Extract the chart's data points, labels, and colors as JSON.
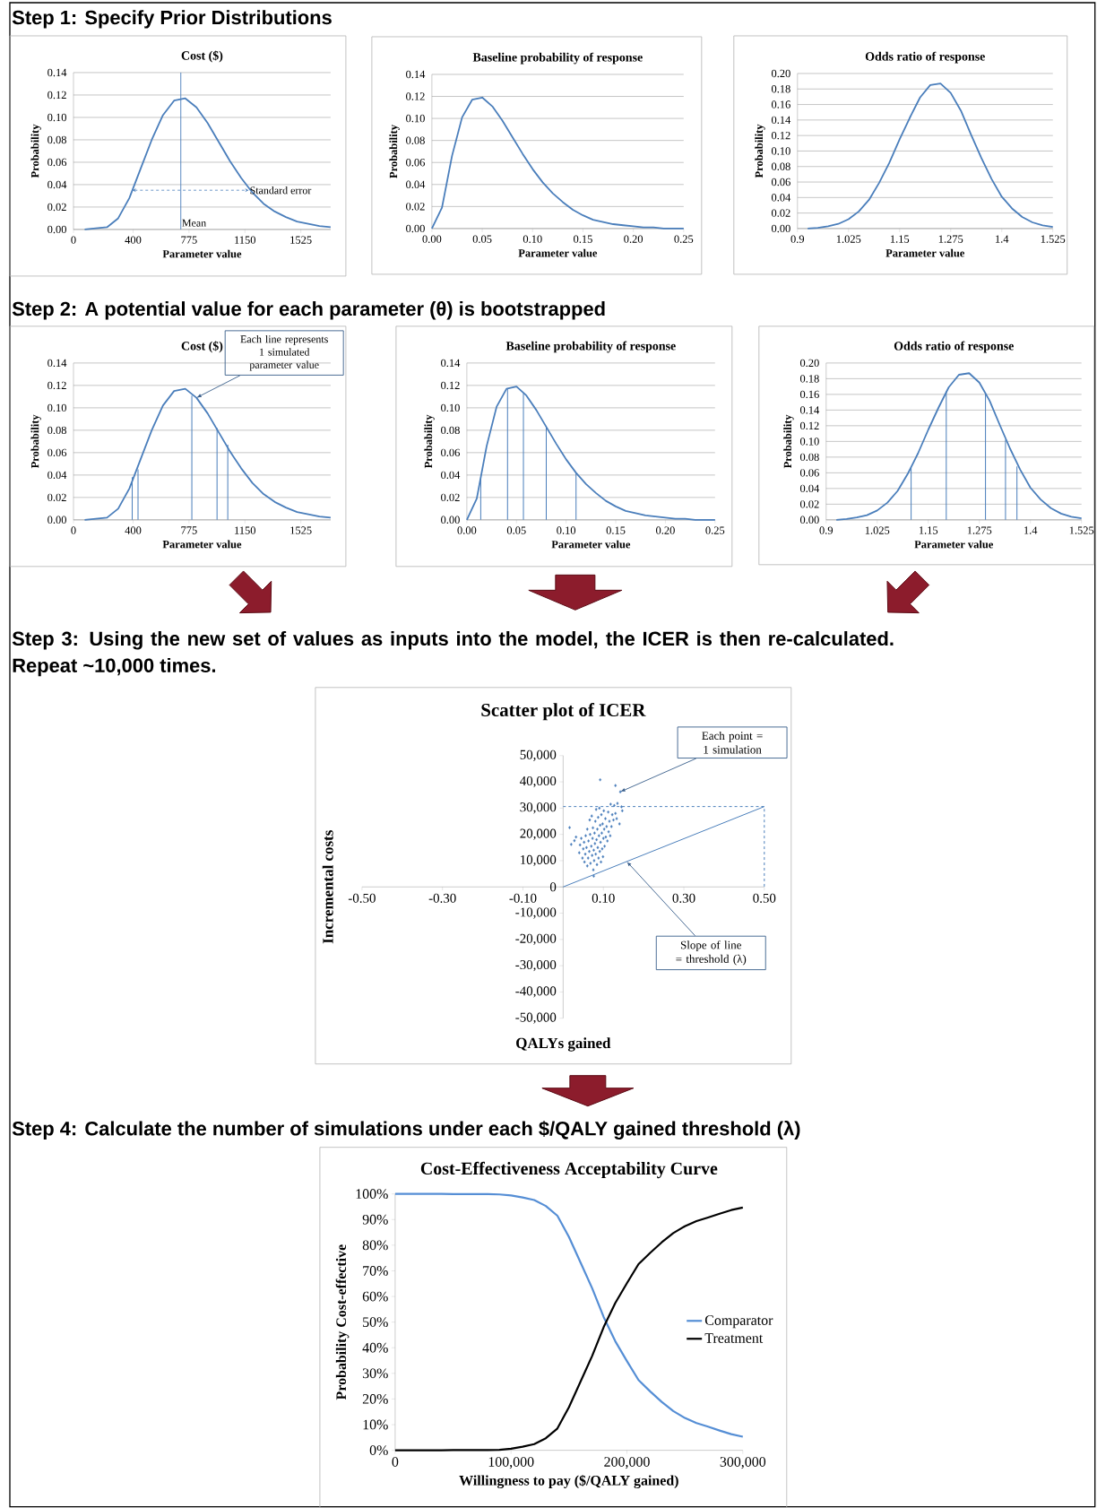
{
  "chart_data": [
    {
      "type": "other",
      "title": "Step 1: Specify Prior Distributions"
    },
    {
      "type": "line",
      "title": "Cost ($)",
      "xlabel": "Parameter value",
      "ylabel": "Probability",
      "color": "#4a7ebb",
      "x": [
        75,
        150,
        225,
        300,
        375,
        450,
        525,
        600,
        675,
        750,
        825,
        900,
        975,
        1050,
        1125,
        1200,
        1275,
        1350,
        1425,
        1500,
        1575,
        1650,
        1725
      ],
      "values": [
        0.0,
        0.001,
        0.002,
        0.01,
        0.028,
        0.054,
        0.08,
        0.102,
        0.115,
        0.117,
        0.109,
        0.095,
        0.078,
        0.061,
        0.046,
        0.033,
        0.023,
        0.016,
        0.011,
        0.007,
        0.005,
        0.003,
        0.002
      ],
      "xlim": [
        0,
        1725
      ],
      "xticks": [
        0,
        400,
        775,
        1150,
        1525
      ],
      "ylim": [
        0,
        0.14
      ],
      "yticks": [
        {
          "value": 0,
          "label": "0.00"
        },
        {
          "value": 0.02,
          "label": "0.02"
        },
        {
          "value": 0.04,
          "label": "0.04"
        },
        {
          "value": 0.06,
          "label": "0.06"
        },
        {
          "value": 0.08,
          "label": "0.08"
        },
        {
          "value": 0.1,
          "label": "0.10"
        },
        {
          "value": 0.12,
          "label": "0.12"
        },
        {
          "value": 0.14,
          "label": "0.14"
        }
      ],
      "grid": "y",
      "ref_lines": [
        {
          "axis": "x",
          "value": 720,
          "label": "Mean",
          "color": "#4a7ebb"
        }
      ],
      "annotations": [
        {
          "text": "Standard error",
          "x": 1175,
          "y": 0.035
        }
      ]
    },
    {
      "type": "line",
      "title": "Baseline probability of response",
      "xlabel": "Parameter value",
      "ylabel": "Probability",
      "color": "#4a7ebb",
      "x": [
        0,
        0.01,
        0.02,
        0.03,
        0.04,
        0.05,
        0.06,
        0.07,
        0.08,
        0.09,
        0.1,
        0.11,
        0.12,
        0.13,
        0.14,
        0.15,
        0.16,
        0.17,
        0.18,
        0.19,
        0.2,
        0.21,
        0.22,
        0.23,
        0.24,
        0.25
      ],
      "values": [
        0.0,
        0.019,
        0.066,
        0.101,
        0.117,
        0.119,
        0.111,
        0.098,
        0.083,
        0.068,
        0.054,
        0.042,
        0.032,
        0.024,
        0.017,
        0.012,
        0.008,
        0.006,
        0.004,
        0.003,
        0.002,
        0.001,
        0.001,
        0.0,
        0.0,
        0.0
      ],
      "xlim": [
        0,
        0.25
      ],
      "xticks": [
        {
          "value": 0,
          "label": "0.00"
        },
        {
          "value": 0.05,
          "label": "0.05"
        },
        {
          "value": 0.1,
          "label": "0.10"
        },
        {
          "value": 0.15,
          "label": "0.15"
        },
        {
          "value": 0.2,
          "label": "0.20"
        },
        {
          "value": 0.25,
          "label": "0.25"
        }
      ],
      "ylim": [
        0,
        0.14
      ],
      "yticks": [
        {
          "value": 0,
          "label": "0.00"
        },
        {
          "value": 0.02,
          "label": "0.02"
        },
        {
          "value": 0.04,
          "label": "0.04"
        },
        {
          "value": 0.06,
          "label": "0.06"
        },
        {
          "value": 0.08,
          "label": "0.08"
        },
        {
          "value": 0.1,
          "label": "0.10"
        },
        {
          "value": 0.12,
          "label": "0.12"
        },
        {
          "value": 0.14,
          "label": "0.14"
        }
      ],
      "grid": "y"
    },
    {
      "type": "line",
      "title": "Odds ratio of response",
      "xlabel": "Parameter value",
      "ylabel": "Probability",
      "color": "#4a7ebb",
      "x": [
        0.925,
        0.95,
        0.975,
        1.0,
        1.025,
        1.05,
        1.075,
        1.1,
        1.125,
        1.15,
        1.175,
        1.2,
        1.225,
        1.25,
        1.275,
        1.3,
        1.325,
        1.35,
        1.375,
        1.4,
        1.425,
        1.45,
        1.475,
        1.5,
        1.525
      ],
      "values": [
        0.0,
        0.001,
        0.003,
        0.006,
        0.012,
        0.022,
        0.037,
        0.059,
        0.085,
        0.115,
        0.143,
        0.169,
        0.185,
        0.187,
        0.175,
        0.152,
        0.121,
        0.091,
        0.064,
        0.041,
        0.026,
        0.015,
        0.008,
        0.004,
        0.002
      ],
      "xlim": [
        0.9,
        1.525
      ],
      "xticks": [
        0.9,
        1.025,
        1.15,
        1.275,
        1.4,
        1.525
      ],
      "ylim": [
        0,
        0.2
      ],
      "yticks": [
        {
          "value": 0,
          "label": "0.00"
        },
        {
          "value": 0.02,
          "label": "0.02"
        },
        {
          "value": 0.04,
          "label": "0.04"
        },
        {
          "value": 0.06,
          "label": "0.06"
        },
        {
          "value": 0.08,
          "label": "0.08"
        },
        {
          "value": 0.1,
          "label": "0.10"
        },
        {
          "value": 0.12,
          "label": "0.12"
        },
        {
          "value": 0.14,
          "label": "0.14"
        },
        {
          "value": 0.16,
          "label": "0.16"
        },
        {
          "value": 0.18,
          "label": "0.18"
        },
        {
          "value": 0.2,
          "label": "0.20"
        }
      ],
      "grid": "y"
    },
    {
      "type": "other",
      "title": "Step 2: A potential value for each parameter (θ) is bootstrapped"
    },
    {
      "type": "line",
      "title": "Cost ($)",
      "xlabel": "Parameter value",
      "ylabel": "Probability",
      "series": [
        {
          "type": "line",
          "color": "#4a7ebb",
          "x": [
            75,
            150,
            225,
            300,
            375,
            450,
            525,
            600,
            675,
            750,
            825,
            900,
            975,
            1050,
            1125,
            1200,
            1275,
            1350,
            1425,
            1500,
            1575,
            1650,
            1725
          ],
          "values": [
            0.0,
            0.001,
            0.002,
            0.01,
            0.028,
            0.054,
            0.08,
            0.102,
            0.115,
            0.117,
            0.109,
            0.095,
            0.078,
            0.061,
            0.046,
            0.033,
            0.023,
            0.016,
            0.011,
            0.007,
            0.005,
            0.003,
            0.002
          ]
        },
        {
          "type": "bar",
          "color": "#4a7ebb",
          "x": [
            394,
            433,
            794,
            963,
            1035
          ],
          "values": [
            0.038,
            0.045,
            0.111,
            0.082,
            0.067
          ]
        }
      ],
      "xlim": [
        0,
        1725
      ],
      "xticks": [
        0,
        400,
        775,
        1150,
        1525
      ],
      "ylim": [
        0,
        0.14
      ],
      "yticks": [
        {
          "value": 0,
          "label": "0.00"
        },
        {
          "value": 0.02,
          "label": "0.02"
        },
        {
          "value": 0.04,
          "label": "0.04"
        },
        {
          "value": 0.06,
          "label": "0.06"
        },
        {
          "value": 0.08,
          "label": "0.08"
        },
        {
          "value": 0.1,
          "label": "0.10"
        },
        {
          "value": 0.12,
          "label": "0.12"
        },
        {
          "value": 0.14,
          "label": "0.14"
        }
      ],
      "grid": "y",
      "annotations": [
        {
          "text": "Each line represents 1 simulated parameter value",
          "x": 825,
          "y": 0.109
        }
      ]
    },
    {
      "type": "line",
      "title": "Baseline probability of response",
      "xlabel": "Parameter value",
      "ylabel": "Probability",
      "series": [
        {
          "type": "line",
          "color": "#4a7ebb",
          "x": [
            0,
            0.01,
            0.02,
            0.03,
            0.04,
            0.05,
            0.06,
            0.07,
            0.08,
            0.09,
            0.1,
            0.11,
            0.12,
            0.13,
            0.14,
            0.15,
            0.16,
            0.17,
            0.18,
            0.19,
            0.2,
            0.21,
            0.22,
            0.23,
            0.24,
            0.25
          ],
          "values": [
            0.0,
            0.019,
            0.066,
            0.101,
            0.117,
            0.119,
            0.111,
            0.098,
            0.083,
            0.068,
            0.054,
            0.042,
            0.032,
            0.024,
            0.017,
            0.012,
            0.008,
            0.006,
            0.004,
            0.003,
            0.002,
            0.001,
            0.001,
            0.0,
            0.0,
            0.0
          ]
        },
        {
          "type": "bar",
          "color": "#4a7ebb",
          "x": [
            0.014,
            0.041,
            0.057,
            0.08,
            0.11
          ],
          "values": [
            0.037,
            0.117,
            0.113,
            0.083,
            0.042
          ]
        }
      ],
      "xlim": [
        0,
        0.25
      ],
      "xticks": [
        {
          "value": 0,
          "label": "0.00"
        },
        {
          "value": 0.05,
          "label": "0.05"
        },
        {
          "value": 0.1,
          "label": "0.10"
        },
        {
          "value": 0.15,
          "label": "0.15"
        },
        {
          "value": 0.2,
          "label": "0.20"
        },
        {
          "value": 0.25,
          "label": "0.25"
        }
      ],
      "ylim": [
        0,
        0.14
      ],
      "yticks": [
        {
          "value": 0,
          "label": "0.00"
        },
        {
          "value": 0.02,
          "label": "0.02"
        },
        {
          "value": 0.04,
          "label": "0.04"
        },
        {
          "value": 0.06,
          "label": "0.06"
        },
        {
          "value": 0.08,
          "label": "0.08"
        },
        {
          "value": 0.1,
          "label": "0.10"
        },
        {
          "value": 0.12,
          "label": "0.12"
        },
        {
          "value": 0.14,
          "label": "0.14"
        }
      ],
      "grid": "y"
    },
    {
      "type": "line",
      "title": "Odds ratio of response",
      "xlabel": "Parameter value",
      "ylabel": "Probability",
      "series": [
        {
          "type": "line",
          "color": "#4a7ebb",
          "x": [
            0.925,
            0.95,
            0.975,
            1.0,
            1.025,
            1.05,
            1.075,
            1.1,
            1.125,
            1.15,
            1.175,
            1.2,
            1.225,
            1.25,
            1.275,
            1.3,
            1.325,
            1.35,
            1.375,
            1.4,
            1.425,
            1.45,
            1.475,
            1.5,
            1.525
          ],
          "values": [
            0.0,
            0.001,
            0.003,
            0.006,
            0.012,
            0.022,
            0.037,
            0.059,
            0.085,
            0.115,
            0.143,
            0.169,
            0.185,
            0.187,
            0.175,
            0.152,
            0.121,
            0.091,
            0.064,
            0.041,
            0.026,
            0.015,
            0.008,
            0.004,
            0.002
          ]
        },
        {
          "type": "bar",
          "color": "#4a7ebb",
          "x": [
            1.108,
            1.194,
            1.29,
            1.339,
            1.367
          ],
          "values": [
            0.066,
            0.164,
            0.162,
            0.102,
            0.068
          ]
        }
      ],
      "xlim": [
        0.9,
        1.525
      ],
      "xticks": [
        0.9,
        1.025,
        1.15,
        1.275,
        1.4,
        1.525
      ],
      "ylim": [
        0,
        0.2
      ],
      "yticks": [
        {
          "value": 0,
          "label": "0.00"
        },
        {
          "value": 0.02,
          "label": "0.02"
        },
        {
          "value": 0.04,
          "label": "0.04"
        },
        {
          "value": 0.06,
          "label": "0.06"
        },
        {
          "value": 0.08,
          "label": "0.08"
        },
        {
          "value": 0.1,
          "label": "0.10"
        },
        {
          "value": 0.12,
          "label": "0.12"
        },
        {
          "value": 0.14,
          "label": "0.14"
        },
        {
          "value": 0.16,
          "label": "0.16"
        },
        {
          "value": 0.18,
          "label": "0.18"
        },
        {
          "value": 0.2,
          "label": "0.20"
        }
      ],
      "grid": "y"
    },
    {
      "type": "other",
      "title": "Step 3: Using the new set of values as inputs into the model, the ICER is then re-calculated. Repeat ~10,000 times."
    },
    {
      "type": "scatter",
      "title": "Scatter plot of ICER",
      "xlabel": "QALYs gained",
      "ylabel": "Incremental costs",
      "series": [
        {
          "type": "scatter",
          "color": "#4a7ebb",
          "marker": "diamond",
          "x": [
            0.016,
            0.02,
            0.028,
            0.032,
            0.04,
            0.042,
            0.045,
            0.048,
            0.05,
            0.052,
            0.053,
            0.055,
            0.056,
            0.058,
            0.06,
            0.06,
            0.062,
            0.063,
            0.065,
            0.066,
            0.067,
            0.068,
            0.07,
            0.071,
            0.072,
            0.073,
            0.074,
            0.075,
            0.076,
            0.076,
            0.077,
            0.078,
            0.079,
            0.08,
            0.081,
            0.082,
            0.083,
            0.084,
            0.085,
            0.086,
            0.087,
            0.088,
            0.089,
            0.09,
            0.091,
            0.092,
            0.092,
            0.093,
            0.094,
            0.095,
            0.096,
            0.097,
            0.098,
            0.099,
            0.1,
            0.101,
            0.102,
            0.103,
            0.105,
            0.106,
            0.108,
            0.11,
            0.112,
            0.113,
            0.115,
            0.117,
            0.118,
            0.12,
            0.122,
            0.125,
            0.127,
            0.13,
            0.13,
            0.133,
            0.135,
            0.14,
            0.142,
            0.145,
            0.147
          ],
          "values": [
            22600,
            16200,
            17600,
            19000,
            13000,
            16000,
            18500,
            11000,
            14500,
            17000,
            9500,
            12500,
            19500,
            15000,
            22000,
            8000,
            11000,
            17500,
            13500,
            25500,
            20000,
            9000,
            15500,
            27000,
            12000,
            18500,
            22500,
            6500,
            14000,
            4100,
            10000,
            20500,
            16500,
            25000,
            12500,
            29500,
            18000,
            8500,
            22000,
            15000,
            26500,
            11000,
            19500,
            30000,
            13500,
            23500,
            40800,
            17000,
            9500,
            27500,
            20500,
            14500,
            24000,
            11500,
            18500,
            29000,
            22000,
            15500,
            26000,
            19000,
            23000,
            17500,
            28500,
            21000,
            25000,
            19500,
            31500,
            23000,
            27500,
            25500,
            31000,
            28000,
            38600,
            26000,
            31800,
            24000,
            36200,
            30500,
            29000
          ]
        },
        {
          "type": "line",
          "color": "#4a7ebb",
          "x": [
            0,
            0.5
          ],
          "values": [
            0,
            30600
          ]
        },
        {
          "type": "line",
          "color": "#4a7ebb",
          "line_style": "dashed",
          "x": [
            0,
            0.5,
            0.5
          ],
          "values": [
            30600,
            30600,
            0
          ]
        }
      ],
      "xlim": [
        -0.5,
        0.5
      ],
      "xticks": [
        {
          "value": -0.5,
          "label": "-0.50"
        },
        {
          "value": -0.3,
          "label": "-0.30"
        },
        {
          "value": -0.1,
          "label": "-0.10"
        },
        {
          "value": 0.1,
          "label": "0.10"
        },
        {
          "value": 0.3,
          "label": "0.30"
        },
        {
          "value": 0.5,
          "label": "0.50"
        }
      ],
      "ylim": [
        -50000,
        50000
      ],
      "yticks": [
        {
          "value": -50000,
          "label": "-50,000"
        },
        {
          "value": -40000,
          "label": "-40,000"
        },
        {
          "value": -30000,
          "label": "-30,000"
        },
        {
          "value": -20000,
          "label": "-20,000"
        },
        {
          "value": -10000,
          "label": "-10,000"
        },
        0,
        {
          "value": 10000,
          "label": "10,000"
        },
        {
          "value": 20000,
          "label": "20,000"
        },
        {
          "value": 30000,
          "label": "30,000"
        },
        {
          "value": 40000,
          "label": "40,000"
        },
        {
          "value": 50000,
          "label": "50,000"
        }
      ],
      "annotations": [
        {
          "text": "Each point = 1 simulation",
          "x": 0.142,
          "y": 36200
        },
        {
          "text": "Slope of line = threshold (λ)",
          "x": 0.158,
          "y": 9670
        }
      ]
    },
    {
      "type": "other",
      "title": "Step 4: Calculate the number of simulations under each $/QALY gained threshold (λ)"
    },
    {
      "type": "line",
      "title": "Cost-Effectiveness Acceptability Curve",
      "xlabel": "Willingness to pay ($/QALY gained)",
      "ylabel": "Probability Cost-effective",
      "x": [
        0,
        10000,
        20000,
        30000,
        40000,
        50000,
        60000,
        70000,
        80000,
        90000,
        100000,
        110000,
        120000,
        130000,
        140000,
        150000,
        160000,
        170000,
        180000,
        190000,
        200000,
        210000,
        220000,
        230000,
        240000,
        250000,
        260000,
        270000,
        280000,
        290000,
        300000
      ],
      "series": [
        {
          "name": "Comparator",
          "color": "#558ed5",
          "values": [
            100,
            100,
            100,
            100,
            100,
            99.9,
            99.9,
            99.9,
            99.9,
            99.8,
            99.4,
            98.6,
            97.6,
            95.3,
            91.5,
            83.2,
            73.2,
            63.2,
            51.9,
            42.5,
            34.8,
            27.4,
            23.0,
            18.9,
            15.3,
            12.6,
            10.6,
            9.2,
            7.7,
            6.3,
            5.3
          ]
        },
        {
          "name": "Treatment",
          "color": "#000000",
          "values": [
            0,
            0,
            0,
            0,
            0,
            0.1,
            0.1,
            0.1,
            0.1,
            0.2,
            0.6,
            1.4,
            2.4,
            4.7,
            8.5,
            16.8,
            26.8,
            36.8,
            48.1,
            57.5,
            65.2,
            72.6,
            77.0,
            81.1,
            84.7,
            87.4,
            89.4,
            90.8,
            92.3,
            93.7,
            94.7
          ]
        }
      ],
      "xlim": [
        0,
        300000
      ],
      "xticks": [
        0,
        {
          "value": 100000,
          "label": "100,000"
        },
        {
          "value": 200000,
          "label": "200,000"
        },
        {
          "value": 300000,
          "label": "300,000"
        }
      ],
      "ylim": [
        0,
        100
      ],
      "yticks": [
        {
          "value": 0,
          "label": "0%"
        },
        {
          "value": 10,
          "label": "10%"
        },
        {
          "value": 20,
          "label": "20%"
        },
        {
          "value": 30,
          "label": "30%"
        },
        {
          "value": 40,
          "label": "40%"
        },
        {
          "value": 50,
          "label": "50%"
        },
        {
          "value": 60,
          "label": "60%"
        },
        {
          "value": 70,
          "label": "70%"
        },
        {
          "value": 80,
          "label": "80%"
        },
        {
          "value": 90,
          "label": "90%"
        },
        {
          "value": 100,
          "label": "100%"
        }
      ],
      "legend": "right"
    }
  ]
}
